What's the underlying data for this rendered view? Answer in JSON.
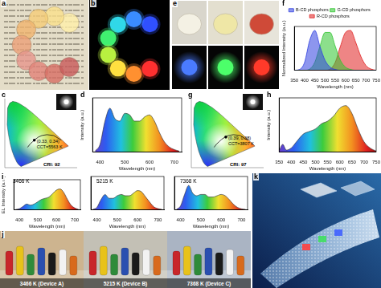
{
  "chart_data": [
    {
      "panel": "d",
      "type": "line",
      "x_label": "Wavelength (nm)",
      "y_label": "Intensity (a.u.)",
      "x": [
        380,
        400,
        420,
        440,
        460,
        480,
        500,
        520,
        540,
        560,
        580,
        600,
        620,
        640,
        660,
        680,
        700,
        720
      ],
      "series": [
        {
          "values": [
            0.02,
            0.15,
            0.6,
            0.85,
            0.65,
            0.6,
            0.75,
            0.72,
            0.6,
            0.6,
            0.68,
            0.72,
            0.6,
            0.38,
            0.2,
            0.1,
            0.05,
            0.02
          ]
        }
      ],
      "xlim": [
        370,
        730
      ],
      "xticks": [
        400,
        500,
        600,
        700
      ],
      "ylim": [
        0,
        1.05
      ],
      "tick_labels": "x",
      "grid": false
    },
    {
      "panel": "f",
      "type": "line",
      "x_label": "Wavelength (nm)",
      "y_label": "Normalized Intensity (a.u.)",
      "x": [
        350,
        375,
        400,
        425,
        450,
        475,
        500,
        525,
        550,
        575,
        600,
        625,
        650,
        675,
        700,
        725,
        750
      ],
      "series": [
        {
          "name": "B-CD phosphors",
          "color": "#2f3fe0",
          "values": [
            0,
            0.02,
            0.2,
            0.75,
            1.0,
            0.6,
            0.25,
            0.08,
            0.02,
            0,
            0,
            0,
            0,
            0,
            0,
            0,
            0
          ]
        },
        {
          "name": "G-CD phosphors",
          "color": "#2ec42e",
          "values": [
            0,
            0,
            0,
            0.03,
            0.2,
            0.6,
            0.95,
            0.95,
            0.6,
            0.25,
            0.08,
            0.02,
            0,
            0,
            0,
            0,
            0
          ]
        },
        {
          "name": "R-CD phosphors",
          "color": "#e02020",
          "values": [
            0,
            0,
            0,
            0,
            0,
            0,
            0,
            0.03,
            0.2,
            0.6,
            0.95,
            1.0,
            0.7,
            0.35,
            0.12,
            0.03,
            0
          ]
        }
      ],
      "xlim": [
        350,
        750
      ],
      "xticks": [
        350,
        400,
        450,
        500,
        550,
        600,
        650,
        700,
        750
      ],
      "ylim": [
        0,
        1.1
      ],
      "tick_labels": "x",
      "grid": false,
      "legend": "top"
    },
    {
      "panel": "h",
      "type": "line",
      "x_label": "Wavelength (nm)",
      "y_label": "Intensity (a.u.)",
      "x": [
        350,
        365,
        380,
        400,
        425,
        450,
        475,
        500,
        525,
        550,
        575,
        600,
        625,
        650,
        675,
        700,
        725,
        750
      ],
      "series": [
        {
          "values": [
            0.02,
            0.15,
            0.04,
            0.08,
            0.22,
            0.35,
            0.4,
            0.45,
            0.55,
            0.6,
            0.7,
            0.85,
            0.9,
            0.75,
            0.45,
            0.2,
            0.08,
            0.02
          ]
        }
      ],
      "xlim": [
        350,
        750
      ],
      "xticks": [
        350,
        400,
        450,
        500,
        550,
        600,
        650,
        700,
        750
      ],
      "ylim": [
        0,
        1.05
      ],
      "tick_labels": "x",
      "grid": false
    },
    {
      "panel": "i",
      "type": "line",
      "annotation": "3466 K",
      "x_label": "Wavelength (nm)",
      "y_label": "EL Intensity (a.u.)",
      "x": [
        380,
        400,
        420,
        440,
        460,
        480,
        500,
        520,
        540,
        560,
        580,
        600,
        620,
        640,
        660,
        680,
        700,
        720
      ],
      "series": [
        {
          "values": [
            0.02,
            0.05,
            0.15,
            0.25,
            0.2,
            0.25,
            0.35,
            0.45,
            0.5,
            0.55,
            0.7,
            0.85,
            0.9,
            0.75,
            0.45,
            0.2,
            0.08,
            0.02
          ]
        }
      ],
      "xlim": [
        370,
        730
      ],
      "xticks": [
        400,
        500,
        600,
        700
      ],
      "ylim": [
        0,
        1.3
      ],
      "tick_labels": "x",
      "grid": false
    },
    {
      "type": "line",
      "annotation": "5215 K",
      "x_label": "Wavelength (nm)",
      "x": [
        380,
        400,
        420,
        440,
        460,
        480,
        500,
        520,
        540,
        560,
        580,
        600,
        620,
        640,
        660,
        680,
        700,
        720
      ],
      "series": [
        {
          "values": [
            0.02,
            0.1,
            0.4,
            0.6,
            0.45,
            0.45,
            0.55,
            0.6,
            0.55,
            0.55,
            0.65,
            0.75,
            0.7,
            0.5,
            0.3,
            0.12,
            0.05,
            0.02
          ]
        }
      ],
      "xlim": [
        370,
        730
      ],
      "xticks": [
        400,
        500,
        600,
        700
      ],
      "ylim": [
        0,
        1.3
      ],
      "tick_labels": "x",
      "grid": false
    },
    {
      "type": "line",
      "annotation": "7368 K",
      "x_label": "Wavelength (nm)",
      "x": [
        380,
        400,
        420,
        440,
        460,
        480,
        500,
        520,
        540,
        560,
        580,
        600,
        620,
        640,
        660,
        680,
        700,
        720
      ],
      "series": [
        {
          "values": [
            0.02,
            0.15,
            0.6,
            0.95,
            0.65,
            0.55,
            0.6,
            0.6,
            0.5,
            0.5,
            0.55,
            0.6,
            0.55,
            0.4,
            0.22,
            0.1,
            0.04,
            0.02
          ]
        }
      ],
      "xlim": [
        370,
        730
      ],
      "xticks": [
        400,
        500,
        600,
        700
      ],
      "ylim": [
        0,
        1.3
      ],
      "tick_labels": "x",
      "grid": false
    }
  ],
  "cie_diagrams": [
    {
      "panel": "c",
      "point": [
        0.33,
        0.34
      ],
      "point_label": "(0.33, 0.34)",
      "cct_label": "CCT=5563 K",
      "cri_label": "CRI: 92"
    },
    {
      "panel": "g",
      "point": [
        0.39,
        0.38
      ],
      "point_label": "(0.39, 0.38)",
      "cct_label": "CCT=3807 K",
      "cri_label": "CRI: 97"
    }
  ],
  "photos": [
    {
      "panel": "a"
    },
    {
      "panel": "b"
    },
    {
      "panel": "e"
    },
    {
      "panel": "j",
      "captions": [
        "3466 K (Device A)",
        "5215 K (Device B)",
        "7368 K (Device C)"
      ]
    },
    {
      "panel": "k"
    }
  ]
}
